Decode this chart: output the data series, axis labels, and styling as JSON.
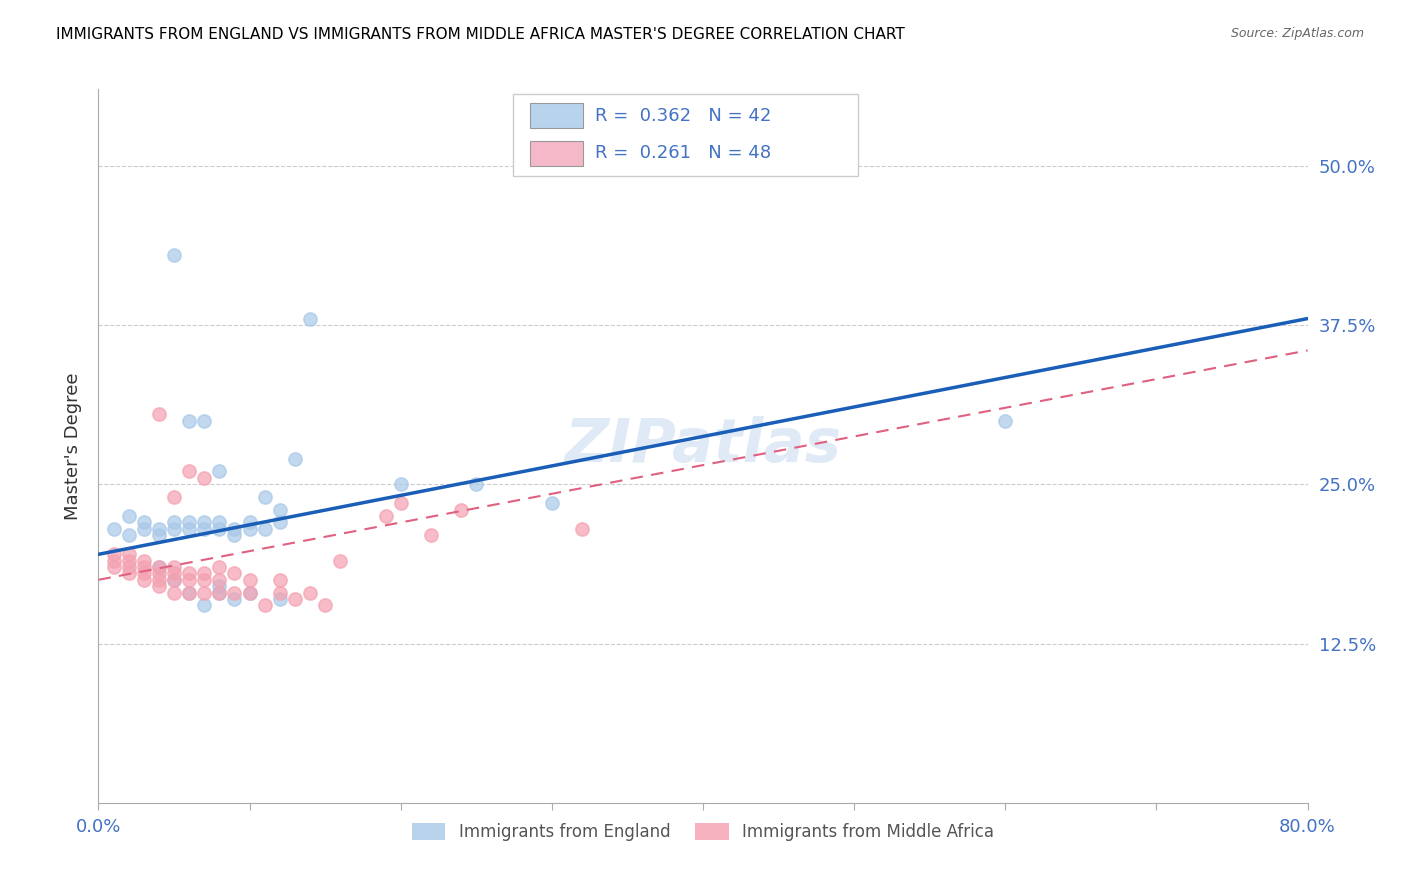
{
  "title": "IMMIGRANTS FROM ENGLAND VS IMMIGRANTS FROM MIDDLE AFRICA MASTER'S DEGREE CORRELATION CHART",
  "source": "Source: ZipAtlas.com",
  "ylabel": "Master's Degree",
  "ytick_labels": [
    "50.0%",
    "37.5%",
    "25.0%",
    "12.5%"
  ],
  "ytick_values": [
    0.5,
    0.375,
    0.25,
    0.125
  ],
  "xlim": [
    0.0,
    0.8
  ],
  "ylim": [
    0.0,
    0.56
  ],
  "england_R": 0.362,
  "england_N": 42,
  "middle_africa_R": 0.261,
  "middle_africa_N": 48,
  "england_color": "#a8c8e8",
  "middle_africa_color": "#f4a0b0",
  "england_line_color": "#1a5eb8",
  "middle_africa_line_color": "#e06080",
  "england_scatter_x": [
    0.01,
    0.02,
    0.02,
    0.03,
    0.03,
    0.04,
    0.04,
    0.05,
    0.05,
    0.06,
    0.06,
    0.07,
    0.07,
    0.08,
    0.08,
    0.09,
    0.09,
    0.1,
    0.1,
    0.11,
    0.11,
    0.12,
    0.12,
    0.13,
    0.06,
    0.07,
    0.08,
    0.14,
    0.2,
    0.25,
    0.3,
    0.04,
    0.05,
    0.06,
    0.07,
    0.08,
    0.08,
    0.09,
    0.1,
    0.12,
    0.6,
    0.05
  ],
  "england_scatter_y": [
    0.215,
    0.225,
    0.21,
    0.22,
    0.215,
    0.215,
    0.21,
    0.22,
    0.215,
    0.215,
    0.22,
    0.22,
    0.215,
    0.22,
    0.215,
    0.215,
    0.21,
    0.215,
    0.22,
    0.24,
    0.215,
    0.22,
    0.23,
    0.27,
    0.3,
    0.3,
    0.26,
    0.38,
    0.25,
    0.25,
    0.235,
    0.185,
    0.175,
    0.165,
    0.155,
    0.17,
    0.165,
    0.16,
    0.165,
    0.16,
    0.3,
    0.43
  ],
  "middle_africa_scatter_x": [
    0.01,
    0.01,
    0.01,
    0.02,
    0.02,
    0.02,
    0.02,
    0.03,
    0.03,
    0.03,
    0.03,
    0.04,
    0.04,
    0.04,
    0.04,
    0.05,
    0.05,
    0.05,
    0.05,
    0.06,
    0.06,
    0.06,
    0.07,
    0.07,
    0.07,
    0.08,
    0.08,
    0.08,
    0.09,
    0.09,
    0.1,
    0.1,
    0.11,
    0.12,
    0.12,
    0.13,
    0.14,
    0.15,
    0.16,
    0.19,
    0.2,
    0.22,
    0.24,
    0.32,
    0.04,
    0.05,
    0.06,
    0.07
  ],
  "middle_africa_scatter_y": [
    0.195,
    0.19,
    0.185,
    0.195,
    0.19,
    0.185,
    0.18,
    0.19,
    0.185,
    0.18,
    0.175,
    0.185,
    0.18,
    0.175,
    0.17,
    0.185,
    0.18,
    0.175,
    0.165,
    0.18,
    0.175,
    0.165,
    0.18,
    0.175,
    0.165,
    0.185,
    0.175,
    0.165,
    0.18,
    0.165,
    0.175,
    0.165,
    0.155,
    0.175,
    0.165,
    0.16,
    0.165,
    0.155,
    0.19,
    0.225,
    0.235,
    0.21,
    0.23,
    0.215,
    0.305,
    0.24,
    0.26,
    0.255
  ],
  "england_trend_x": [
    0.0,
    0.8
  ],
  "england_trend_y": [
    0.195,
    0.38
  ],
  "middle_africa_trend_x": [
    0.0,
    0.8
  ],
  "middle_africa_trend_y": [
    0.175,
    0.355
  ],
  "watermark": "ZIPatlas",
  "background_color": "#ffffff",
  "grid_color": "#cccccc",
  "tick_label_color": "#4472c4",
  "title_color": "#000000",
  "title_fontsize": 11,
  "axis_label_color": "#333333",
  "legend_box_color_england": "#b8d4ec",
  "legend_box_color_middle_africa": "#f5b8c8",
  "legend_text_color": "#4472c4",
  "source_color": "#666666",
  "watermark_color": "#ccddf0"
}
